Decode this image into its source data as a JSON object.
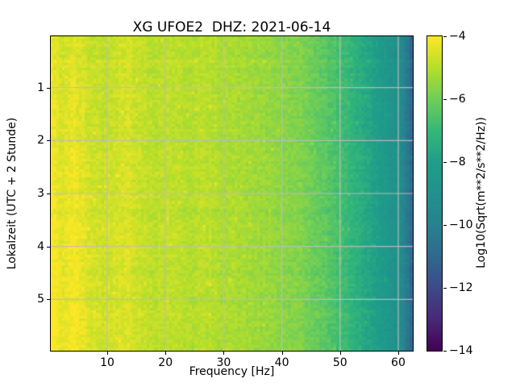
{
  "figure": {
    "title": "XG UFOE2  DHZ: 2021-06-14",
    "background": "#ffffff"
  },
  "axes": {
    "xlabel": "Frequency [Hz]",
    "ylabel": "Lokalzeit (UTC + 2 Stunde)",
    "xticks": [
      {
        "v": 10,
        "label": "10"
      },
      {
        "v": 20,
        "label": "20"
      },
      {
        "v": 30,
        "label": "30"
      },
      {
        "v": 40,
        "label": "40"
      },
      {
        "v": 50,
        "label": "50"
      },
      {
        "v": 60,
        "label": "60"
      }
    ],
    "yticks": [
      {
        "v": 1,
        "label": "1"
      },
      {
        "v": 2,
        "label": "2"
      },
      {
        "v": 3,
        "label": "3"
      },
      {
        "v": 4,
        "label": "4"
      },
      {
        "v": 5,
        "label": "5"
      }
    ],
    "grid_color": "#bdbdbd",
    "tick_color": "#000000"
  },
  "colorbar": {
    "label": "Log10(Sqrt(m**2/s**2/Hz))",
    "ticks": [
      {
        "v": -4,
        "label": "−4"
      },
      {
        "v": -6,
        "label": "−6"
      },
      {
        "v": -8,
        "label": "−8"
      },
      {
        "v": -10,
        "label": "−10"
      },
      {
        "v": -12,
        "label": "−12"
      },
      {
        "v": -14,
        "label": "−14"
      }
    ]
  },
  "chart_data": {
    "type": "heatmap",
    "subtype": "spectrogram",
    "title": "XG UFOE2  DHZ: 2021-06-14",
    "xlabel": "Frequency [Hz]",
    "ylabel": "Lokalzeit (UTC + 2 Stunde)",
    "value_label": "Log10(Sqrt(m**2/s**2/Hz))",
    "xlim": [
      0.3,
      62.5
    ],
    "ylim": [
      0.03,
      5.97
    ],
    "clim": [
      -14,
      -4
    ],
    "grid": true,
    "legend_position": "colorbar-right",
    "colormap": "viridis",
    "colormap_stops": [
      [
        0.0,
        "#440154"
      ],
      [
        0.1,
        "#482878"
      ],
      [
        0.2,
        "#3e4989"
      ],
      [
        0.3,
        "#31688e"
      ],
      [
        0.4,
        "#26828e"
      ],
      [
        0.5,
        "#21918c"
      ],
      [
        0.6,
        "#1f9e89"
      ],
      [
        0.7,
        "#35b779"
      ],
      [
        0.8,
        "#6ece58"
      ],
      [
        0.9,
        "#b5de2b"
      ],
      [
        1.0,
        "#fde725"
      ]
    ],
    "base_profile": [
      [
        0.0,
        -4.2
      ],
      [
        0.8,
        -4.3
      ],
      [
        2.0,
        -4.65
      ],
      [
        3.2,
        -4.5
      ],
      [
        4.3,
        -4.35
      ],
      [
        5.5,
        -4.55
      ],
      [
        7.0,
        -4.75
      ],
      [
        9.0,
        -4.85
      ],
      [
        11.0,
        -4.75
      ],
      [
        12.5,
        -4.55
      ],
      [
        14.0,
        -4.6
      ],
      [
        15.5,
        -4.8
      ],
      [
        17.0,
        -4.9
      ],
      [
        19.0,
        -4.92
      ],
      [
        21.0,
        -4.85
      ],
      [
        23.0,
        -4.95
      ],
      [
        25.0,
        -5.0
      ],
      [
        27.0,
        -4.92
      ],
      [
        29.0,
        -5.05
      ],
      [
        31.0,
        -5.12
      ],
      [
        33.0,
        -5.2
      ],
      [
        35.0,
        -5.3
      ],
      [
        37.0,
        -5.4
      ],
      [
        39.0,
        -5.5
      ],
      [
        41.0,
        -5.62
      ],
      [
        43.0,
        -5.78
      ],
      [
        45.0,
        -5.98
      ],
      [
        47.0,
        -6.25
      ],
      [
        49.0,
        -6.55
      ],
      [
        51.0,
        -6.9
      ],
      [
        53.0,
        -7.3
      ],
      [
        55.0,
        -7.7
      ],
      [
        57.0,
        -8.2
      ],
      [
        58.5,
        -8.6
      ],
      [
        60.0,
        -9.1
      ],
      [
        61.0,
        -9.7
      ],
      [
        61.8,
        -10.5
      ],
      [
        62.5,
        -11.2
      ]
    ],
    "lowfreq_time_boost": {
      "amp": 0.4,
      "freq_sigma": 13
    },
    "noise": {
      "cell": 0.27,
      "row": 0.1,
      "col": 0.07,
      "speckle_p": 0.02,
      "speckle_amp": 0.4
    },
    "bins": {
      "cols": 128,
      "rows": 118
    },
    "seed": 42
  }
}
